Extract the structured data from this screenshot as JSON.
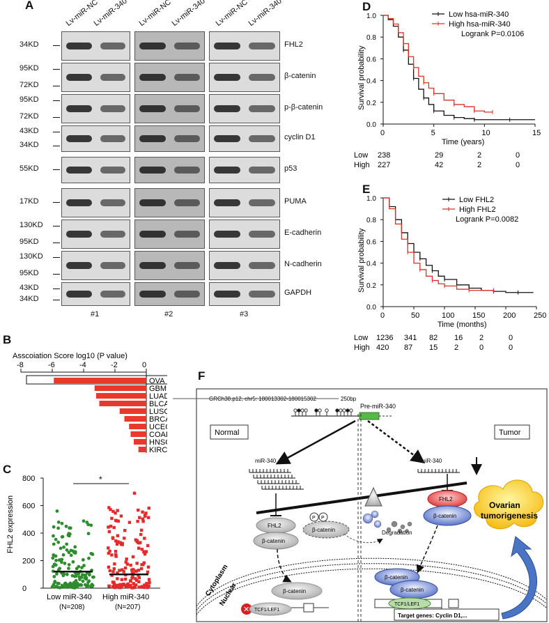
{
  "panel_labels": [
    "A",
    "B",
    "C",
    "D",
    "E",
    "F"
  ],
  "panel_a": {
    "lanes": [
      "Lv-miR-NC",
      "Lv-miR-340",
      "Lv-miR-NC",
      "Lv-miR-340",
      "Lv-miR-NC",
      "Lv-miR-340"
    ],
    "groups": [
      "#1",
      "#2",
      "#3"
    ],
    "rows": [
      {
        "markers": [
          "34KD"
        ],
        "protein": "FHL2"
      },
      {
        "markers": [
          "95KD",
          "72KD"
        ],
        "protein": "β-catenin"
      },
      {
        "markers": [
          "95KD",
          "72KD"
        ],
        "protein": "p-β-catenin"
      },
      {
        "markers": [
          "43KD",
          "34KD"
        ],
        "protein": "cyclin D1"
      },
      {
        "markers": [
          "55KD"
        ],
        "protein": "p53"
      },
      {
        "markers": [
          "17KD"
        ],
        "protein": "PUMA"
      },
      {
        "markers": [
          "130KD",
          "95KD"
        ],
        "protein": "E-cadherin"
      },
      {
        "markers": [
          "130KD",
          "95KD"
        ],
        "protein": "N-cadherin"
      },
      {
        "markers": [
          "43KD",
          "34KD"
        ],
        "protein": "GAPDH"
      }
    ]
  },
  "chart_data": [
    {
      "panel": "B",
      "type": "bar",
      "title": "Asscoiation Score  log10 (P value)",
      "categories": [
        "OVA",
        "GBM",
        "LUAD",
        "BLCA",
        "LUSC",
        "BRCA",
        "UCEC",
        "COAD",
        "HNSC",
        "KIRC"
      ],
      "values": [
        -5.9,
        -3.3,
        -3.2,
        -3.0,
        -1.7,
        -1.4,
        -1.1,
        -1.0,
        -0.8,
        -0.5
      ],
      "xlim": [
        -8,
        0
      ],
      "xticks": [
        "-8",
        "-6",
        "-4",
        "-2",
        "0"
      ],
      "color": "#e8392c"
    },
    {
      "panel": "C",
      "type": "scatter",
      "ylabel": "FHL2 expression",
      "ylim": [
        0,
        800
      ],
      "yticks": [
        "0",
        "200",
        "400",
        "600",
        "800"
      ],
      "categories": [
        "Low miR-340",
        "High miR-340"
      ],
      "n_labels": [
        "(N=208)",
        "(N=207)"
      ],
      "colors": [
        "#2e8b2e",
        "#e32b2b"
      ],
      "medians": [
        120,
        100
      ],
      "max_values": [
        560,
        690
      ],
      "significance": "*"
    },
    {
      "panel": "D",
      "type": "line",
      "xlabel": "Time (years)",
      "ylabel": "Survival probability",
      "xlim": [
        0,
        15
      ],
      "ylim": [
        0,
        1.0
      ],
      "xticks": [
        "0",
        "5",
        "10",
        "15"
      ],
      "yticks": [
        "0.0",
        "0.2",
        "0.4",
        "0.6",
        "0.8",
        "1.0"
      ],
      "legend": "top-right",
      "logrank": "Logrank P=0.0106",
      "series": [
        {
          "name": "Low hsa-miR-340",
          "color": "#111111",
          "x": [
            0,
            0.5,
            1,
            1.5,
            2,
            2.5,
            3,
            3.5,
            4,
            4.5,
            5,
            6,
            7,
            8,
            9,
            10,
            12.5,
            15
          ],
          "y": [
            1.0,
            0.96,
            0.9,
            0.8,
            0.68,
            0.55,
            0.42,
            0.32,
            0.24,
            0.18,
            0.12,
            0.08,
            0.06,
            0.05,
            0.04,
            0.04,
            0.04,
            0.04
          ]
        },
        {
          "name": "High hsa-miR-340",
          "color": "#d9322a",
          "x": [
            0,
            0.5,
            1,
            1.5,
            2,
            2.5,
            3,
            3.5,
            4,
            4.5,
            5,
            6,
            7,
            8,
            9,
            10,
            10.8
          ],
          "y": [
            1.0,
            0.97,
            0.92,
            0.84,
            0.74,
            0.62,
            0.52,
            0.44,
            0.38,
            0.33,
            0.28,
            0.22,
            0.18,
            0.16,
            0.12,
            0.11,
            0.11
          ]
        }
      ],
      "risk_table": {
        "rows": [
          [
            "Low",
            "238",
            "29",
            "2",
            "0"
          ],
          [
            "High",
            "227",
            "42",
            "2",
            "0"
          ]
        ]
      }
    },
    {
      "panel": "E",
      "type": "line",
      "xlabel": "Time (months)",
      "ylabel": "Survival probability",
      "xlim": [
        0,
        250
      ],
      "ylim": [
        0,
        1.0
      ],
      "xticks": [
        "0",
        "50",
        "100",
        "150",
        "200",
        "250"
      ],
      "yticks": [
        "0.0",
        "0.2",
        "0.4",
        "0.6",
        "0.8",
        "1.0"
      ],
      "legend": "top-right",
      "logrank": "Logrank P=0.0082",
      "series": [
        {
          "name": "Low FHL2",
          "color": "#111111",
          "x": [
            0,
            10,
            20,
            30,
            40,
            50,
            60,
            70,
            80,
            90,
            100,
            120,
            140,
            160,
            180,
            200,
            220,
            245
          ],
          "y": [
            1.0,
            0.92,
            0.8,
            0.68,
            0.58,
            0.5,
            0.44,
            0.38,
            0.33,
            0.28,
            0.25,
            0.2,
            0.17,
            0.15,
            0.14,
            0.13,
            0.13,
            0.13
          ]
        },
        {
          "name": "High FHL2",
          "color": "#d9322a",
          "x": [
            0,
            10,
            20,
            30,
            40,
            50,
            60,
            70,
            80,
            90,
            100,
            120,
            140,
            160,
            180
          ],
          "y": [
            1.0,
            0.9,
            0.76,
            0.62,
            0.5,
            0.4,
            0.34,
            0.28,
            0.24,
            0.21,
            0.19,
            0.16,
            0.15,
            0.15,
            0.15
          ]
        }
      ],
      "risk_table": {
        "rows": [
          [
            "Low",
            "1236",
            "341",
            "82",
            "16",
            "2",
            "0"
          ],
          [
            "High",
            "420",
            "87",
            "15",
            "2",
            "0",
            "0"
          ]
        ]
      }
    }
  ],
  "panel_f": {
    "locus": "GRCh38.p12, chr5: 180013302-180015302",
    "scalebar": "250bp",
    "pre_mir": "Pre-miR-340",
    "normal": "Normal",
    "tumor": "Tumor",
    "mir_left": "miR-340",
    "mir_right": "miR-340",
    "fhl2": "FHL2",
    "bcat": "β-catenin",
    "p_label": "P",
    "degradation": "Degradation",
    "cytoplasm": "Cytoplasm",
    "nuclear": "Nuclear",
    "tcf": "TCF1/LEF1",
    "targets": "Target genes: Cyclin D1,...",
    "ovarian": [
      "Ovarian",
      "tumorigenesis"
    ]
  }
}
